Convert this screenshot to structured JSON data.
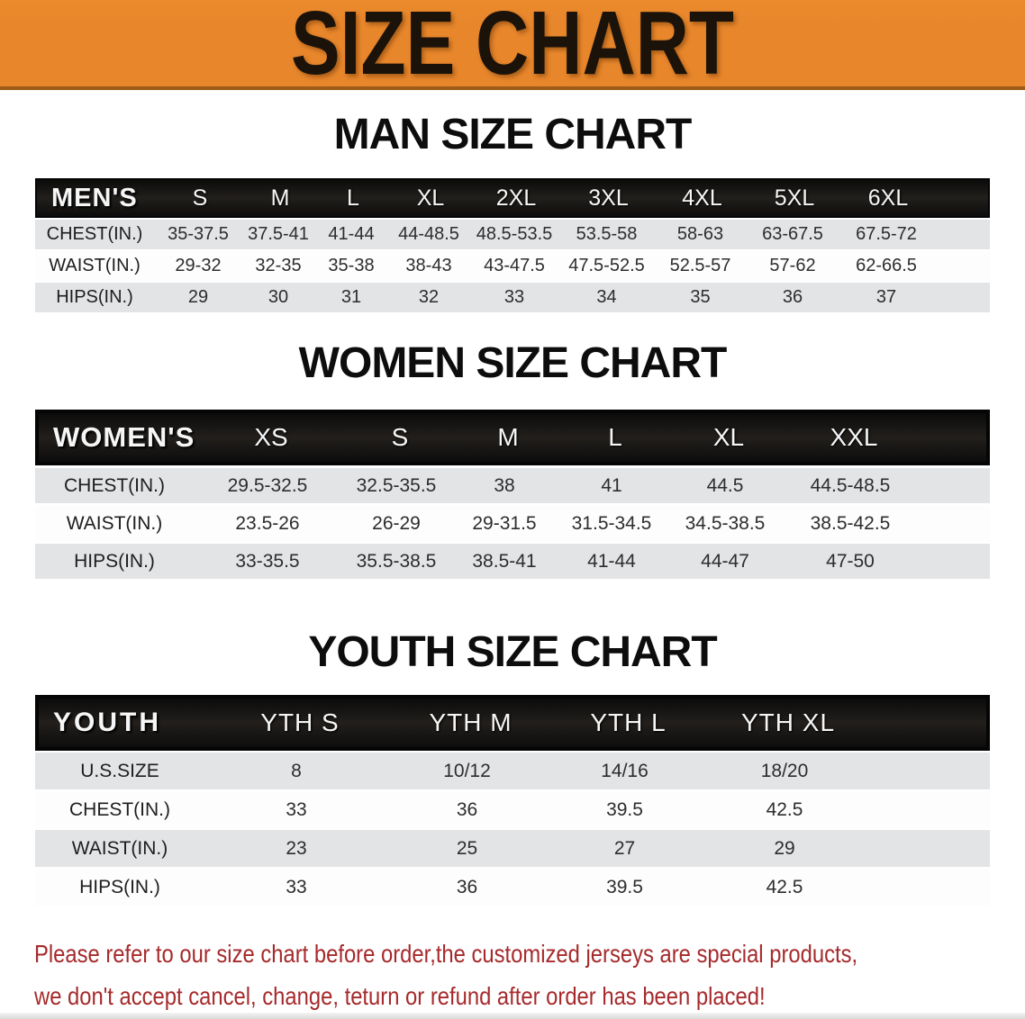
{
  "banner": {
    "title": "SIZE CHART",
    "bg_color": "#E8862B",
    "text_color": "#1B130A"
  },
  "sections": [
    {
      "id": "men",
      "title": "MAN SIZE CHART",
      "header_label": "MEN'S",
      "columns": [
        "S",
        "M",
        "L",
        "XL",
        "2XL",
        "3XL",
        "4XL",
        "5XL",
        "6XL"
      ],
      "rows": [
        {
          "label": "CHEST(IN.)",
          "values": [
            "35-37.5",
            "37.5-41",
            "41-44",
            "44-48.5",
            "48.5-53.5",
            "53.5-58",
            "58-63",
            "63-67.5",
            "67.5-72"
          ]
        },
        {
          "label": "WAIST(IN.)",
          "values": [
            "29-32",
            "32-35",
            "35-38",
            "38-43",
            "43-47.5",
            "47.5-52.5",
            "52.5-57",
            "57-62",
            "62-66.5"
          ]
        },
        {
          "label": "HIPS(IN.)",
          "values": [
            "29",
            "30",
            "31",
            "32",
            "33",
            "34",
            "35",
            "36",
            "37"
          ]
        }
      ]
    },
    {
      "id": "women",
      "title": "WOMEN SIZE CHART",
      "header_label": "WOMEN'S",
      "columns": [
        "XS",
        "S",
        "M",
        "L",
        "XL",
        "XXL"
      ],
      "rows": [
        {
          "label": "CHEST(IN.)",
          "values": [
            "29.5-32.5",
            "32.5-35.5",
            "38",
            "41",
            "44.5",
            "44.5-48.5"
          ]
        },
        {
          "label": "WAIST(IN.)",
          "values": [
            "23.5-26",
            "26-29",
            "29-31.5",
            "31.5-34.5",
            "34.5-38.5",
            "38.5-42.5"
          ]
        },
        {
          "label": "HIPS(IN.)",
          "values": [
            "33-35.5",
            "35.5-38.5",
            "38.5-41",
            "41-44",
            "44-47",
            "47-50"
          ]
        }
      ]
    },
    {
      "id": "youth",
      "title": "YOUTH SIZE CHART",
      "header_label": "YOUTH",
      "columns": [
        "YTH S",
        "YTH M",
        "YTH L",
        "YTH XL"
      ],
      "rows": [
        {
          "label": "U.S.SIZE",
          "values": [
            "8",
            "10/12",
            "14/16",
            "18/20"
          ]
        },
        {
          "label": "CHEST(IN.)",
          "values": [
            "33",
            "36",
            "39.5",
            "42.5"
          ]
        },
        {
          "label": "WAIST(IN.)",
          "values": [
            "23",
            "25",
            "27",
            "29"
          ]
        },
        {
          "label": "HIPS(IN.)",
          "values": [
            "33",
            "36",
            "39.5",
            "42.5"
          ]
        }
      ]
    }
  ],
  "disclaimer": {
    "line1": "Please refer to our size chart before order,the customized jerseys are special products,",
    "line2": "we don't accept cancel, change, teturn or refund after order has been placed!",
    "color": "#A62A2C"
  }
}
